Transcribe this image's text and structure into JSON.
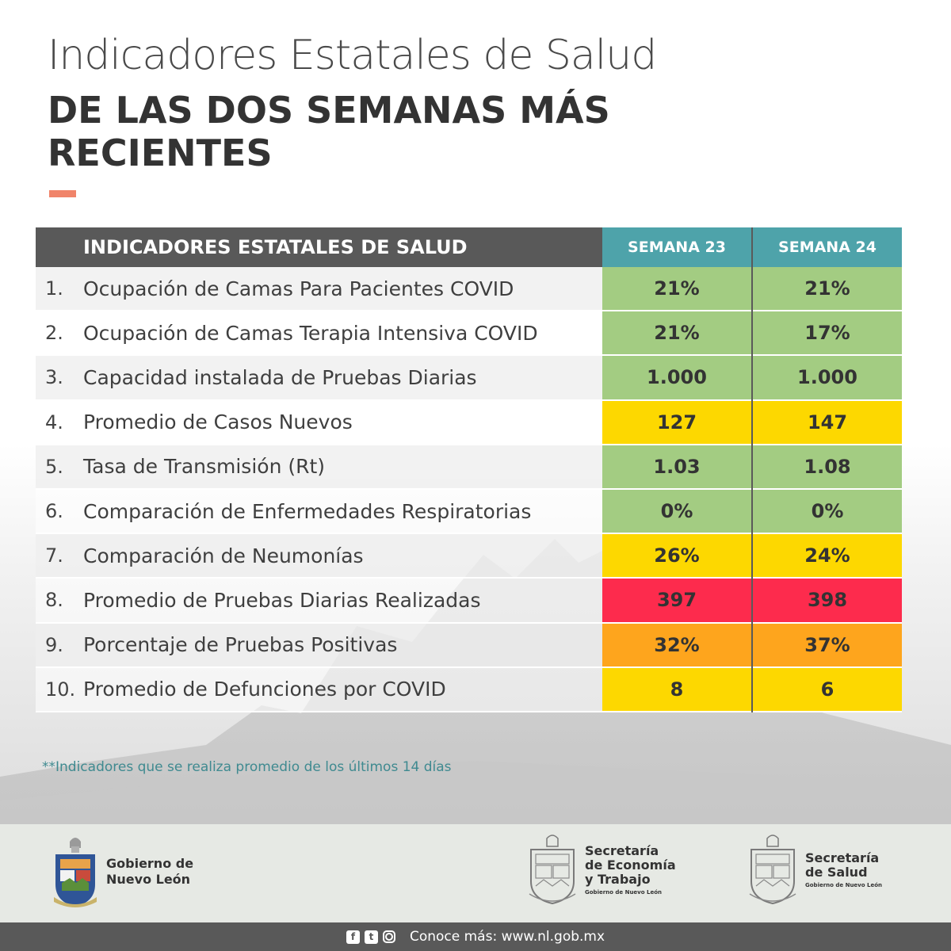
{
  "header": {
    "title_light": "Indicadores Estatales de Salud",
    "title_bold": "DE LAS DOS SEMANAS MÁS RECIENTES"
  },
  "table": {
    "header_label": "INDICADORES ESTATALES DE SALUD",
    "week1_label": "SEMANA 23",
    "week2_label": "SEMANA 24",
    "rows": [
      {
        "num": "1.",
        "label": "Ocupación de Camas Para Pacientes COVID",
        "w1": "21%",
        "w2": "21%",
        "c1": "#a3cc82",
        "c2": "#a3cc82"
      },
      {
        "num": "2.",
        "label": "Ocupación de Camas Terapia Intensiva COVID",
        "w1": "21%",
        "w2": "17%",
        "c1": "#a3cc82",
        "c2": "#a3cc82"
      },
      {
        "num": "3.",
        "label": "Capacidad instalada de Pruebas Diarias",
        "w1": "1.000",
        "w2": "1.000",
        "c1": "#a3cc82",
        "c2": "#a3cc82"
      },
      {
        "num": "4.",
        "label": "Promedio de Casos Nuevos",
        "w1": "127",
        "w2": "147",
        "c1": "#fdd800",
        "c2": "#fdd800"
      },
      {
        "num": "5.",
        "label": "Tasa de Transmisión (Rt)",
        "w1": "1.03",
        "w2": "1.08",
        "c1": "#a3cc82",
        "c2": "#a3cc82"
      },
      {
        "num": "6.",
        "label": "Comparación de Enfermedades Respiratorias",
        "w1": "0%",
        "w2": "0%",
        "c1": "#a3cc82",
        "c2": "#a3cc82"
      },
      {
        "num": "7.",
        "label": "Comparación de Neumonías",
        "w1": "26%",
        "w2": "24%",
        "c1": "#fdd800",
        "c2": "#fdd800"
      },
      {
        "num": "8.",
        "label": "Promedio de Pruebas Diarias Realizadas",
        "w1": "397",
        "w2": "398",
        "c1": "#fd2b4d",
        "c2": "#fd2b4d"
      },
      {
        "num": "9.",
        "label": "Porcentaje de Pruebas Positivas",
        "w1": "32%",
        "w2": "37%",
        "c1": "#fea51d",
        "c2": "#fea51d"
      },
      {
        "num": "10.",
        "label": "Promedio de Defunciones por COVID",
        "w1": "8",
        "w2": "6",
        "c1": "#fdd800",
        "c2": "#fdd800"
      }
    ]
  },
  "note": "**Indicadores que se realiza promedio de los últimos 14 días",
  "footer": {
    "logo1_line1": "Gobierno de",
    "logo1_line2": "Nuevo León",
    "logo2_line1": "Secretaría",
    "logo2_line2": "de Economía",
    "logo2_line3": "y Trabajo",
    "logo2_sub": "Gobierno de Nuevo León",
    "logo3_line1": "Secretaría",
    "logo3_line2": "de Salud",
    "logo3_sub": "Gobierno de Nuevo León",
    "bottom_text": "Conoce más: www.nl.gob.mx",
    "icons": [
      "facebook-icon",
      "twitter-icon",
      "instagram-icon"
    ]
  },
  "colors": {
    "accent": "#f0846a",
    "header_dark": "#595959",
    "header_teal": "#4ea3aa",
    "green": "#a3cc82",
    "yellow": "#fdd800",
    "red": "#fd2b4d",
    "orange": "#fea51d"
  }
}
